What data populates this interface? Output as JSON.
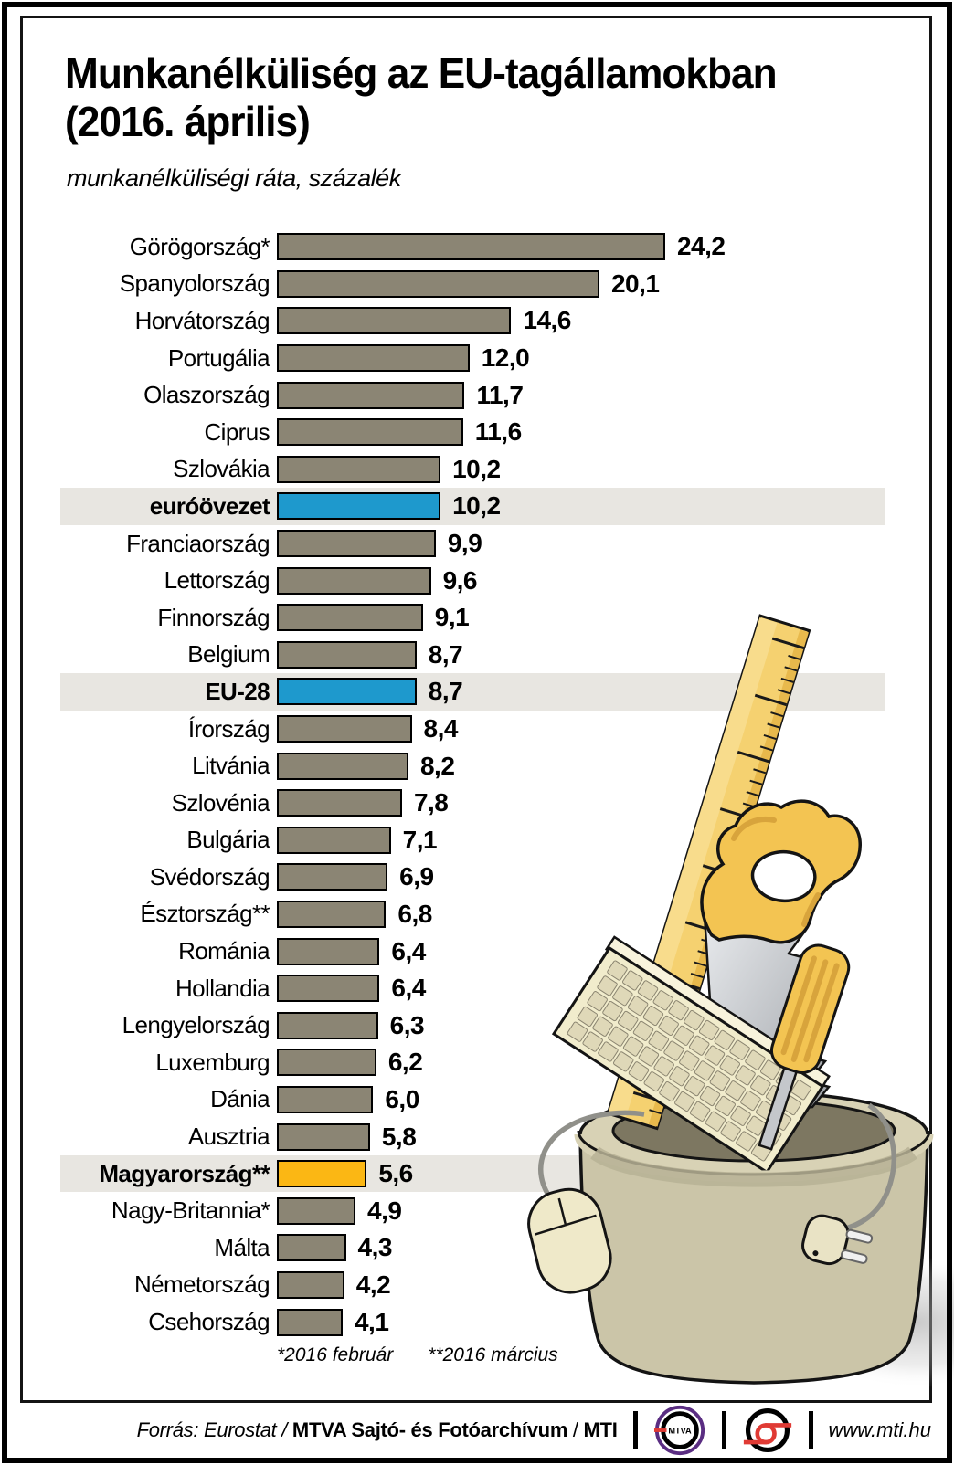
{
  "header": {
    "title_line1": "Munkanélküliség az EU-tagállamokban",
    "title_line2": "(2016. április)",
    "subtitle": "munkanélküliségi ráta, százalék"
  },
  "chart_data": {
    "type": "bar",
    "orientation": "horizontal",
    "value_unit": "percent",
    "decimal_style": "comma",
    "xlim": [
      0,
      25
    ],
    "grid": false,
    "legend": "none",
    "rows": [
      {
        "label": "Görögország*",
        "value": 24.2,
        "display": "24,2",
        "highlight": "none"
      },
      {
        "label": "Spanyolország",
        "value": 20.1,
        "display": "20,1",
        "highlight": "none"
      },
      {
        "label": "Horvátország",
        "value": 14.6,
        "display": "14,6",
        "highlight": "none"
      },
      {
        "label": "Portugália",
        "value": 12.0,
        "display": "12,0",
        "highlight": "none"
      },
      {
        "label": "Olaszország",
        "value": 11.7,
        "display": "11,7",
        "highlight": "none"
      },
      {
        "label": "Ciprus",
        "value": 11.6,
        "display": "11,6",
        "highlight": "none"
      },
      {
        "label": "Szlovákia",
        "value": 10.2,
        "display": "10,2",
        "highlight": "none"
      },
      {
        "label": "euróövezet",
        "value": 10.2,
        "display": "10,2",
        "highlight": "eurozone"
      },
      {
        "label": "Franciaország",
        "value": 9.9,
        "display": "9,9",
        "highlight": "none"
      },
      {
        "label": "Lettország",
        "value": 9.6,
        "display": "9,6",
        "highlight": "none"
      },
      {
        "label": "Finnország",
        "value": 9.1,
        "display": "9,1",
        "highlight": "none"
      },
      {
        "label": "Belgium",
        "value": 8.7,
        "display": "8,7",
        "highlight": "none"
      },
      {
        "label": "EU-28",
        "value": 8.7,
        "display": "8,7",
        "highlight": "eu28"
      },
      {
        "label": "Írország",
        "value": 8.4,
        "display": "8,4",
        "highlight": "none"
      },
      {
        "label": "Litvánia",
        "value": 8.2,
        "display": "8,2",
        "highlight": "none"
      },
      {
        "label": "Szlovénia",
        "value": 7.8,
        "display": "7,8",
        "highlight": "none"
      },
      {
        "label": "Bulgária",
        "value": 7.1,
        "display": "7,1",
        "highlight": "none"
      },
      {
        "label": "Svédország",
        "value": 6.9,
        "display": "6,9",
        "highlight": "none"
      },
      {
        "label": "Észtország**",
        "value": 6.8,
        "display": "6,8",
        "highlight": "none"
      },
      {
        "label": "Románia",
        "value": 6.4,
        "display": "6,4",
        "highlight": "none"
      },
      {
        "label": "Hollandia",
        "value": 6.4,
        "display": "6,4",
        "highlight": "none"
      },
      {
        "label": "Lengyelország",
        "value": 6.3,
        "display": "6,3",
        "highlight": "none"
      },
      {
        "label": "Luxemburg",
        "value": 6.2,
        "display": "6,2",
        "highlight": "none"
      },
      {
        "label": "Dánia",
        "value": 6.0,
        "display": "6,0",
        "highlight": "none"
      },
      {
        "label": "Ausztria",
        "value": 5.8,
        "display": "5,8",
        "highlight": "none"
      },
      {
        "label": "Magyarország**",
        "value": 5.6,
        "display": "5,6",
        "highlight": "hungary"
      },
      {
        "label": "Nagy-Britannia*",
        "value": 4.9,
        "display": "4,9",
        "highlight": "none"
      },
      {
        "label": "Málta",
        "value": 4.3,
        "display": "4,3",
        "highlight": "none"
      },
      {
        "label": "Németország",
        "value": 4.2,
        "display": "4,2",
        "highlight": "none"
      },
      {
        "label": "Csehország",
        "value": 4.1,
        "display": "4,1",
        "highlight": "none"
      }
    ]
  },
  "footnotes": {
    "feb": "*2016 február",
    "mar": "**2016 március"
  },
  "footer": {
    "source_prefix": "Forrás: Eurostat /",
    "source_org": "MTVA Sajtó- és Fotóarchívum",
    "source_sep": "/",
    "source_agency": "MTI",
    "mtva_logo_label": "MTVA",
    "website": "www.mti.hu"
  },
  "colors": {
    "bar": "#8B8574",
    "eurozone": "#1E99CD",
    "eu28": "#1E99CD",
    "hungary": "#FBB714",
    "highlight_band": "#E8E6E1",
    "tool_yellow": "#F3C452",
    "tool_yellow_shade": "#D8A43C",
    "ruler_yellow": "#F5D170",
    "bucket_khaki": "#CBC5A8",
    "mtva_purple": "#5A2D82",
    "logo_red": "#E03A34"
  }
}
